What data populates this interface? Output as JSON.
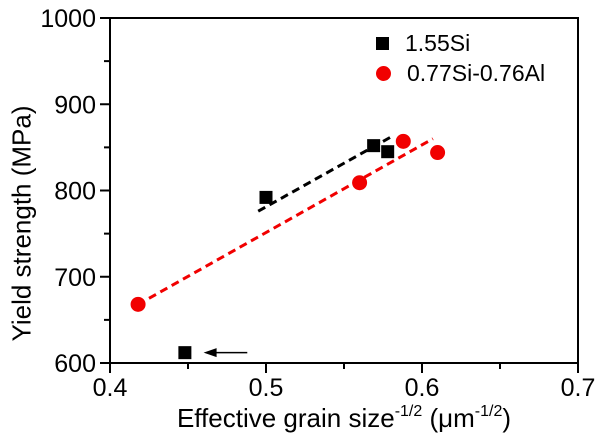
{
  "chart_data": {
    "type": "scatter",
    "title": "",
    "ylabel": "Yield strength (MPa)",
    "xlabel": {
      "text": "Effective grain size",
      "sup": "-1/2",
      "unit_open": " (",
      "unit": "μm",
      "unit_sup": "-1/2",
      "unit_close": ")"
    },
    "xlim": [
      0.4,
      0.7
    ],
    "ylim": [
      600,
      1000
    ],
    "x_major_ticks": [
      0.4,
      0.5,
      0.6,
      0.7
    ],
    "x_tick_labels": [
      "0.4",
      "0.5",
      "0.6",
      "0.7"
    ],
    "x_minor_ticks": [
      0.45,
      0.55,
      0.65
    ],
    "y_major_ticks": [
      600,
      700,
      800,
      900,
      1000
    ],
    "y_tick_labels": [
      "600",
      "700",
      "800",
      "900",
      "1000"
    ],
    "y_minor_ticks": [
      650,
      750,
      850,
      950
    ],
    "grid": false,
    "legend_position": "top-right",
    "series": [
      {
        "name": "1.55Si",
        "marker": "square",
        "color": "#000000",
        "points": [
          [
            0.448,
            612
          ],
          [
            0.5,
            792
          ],
          [
            0.569,
            852
          ],
          [
            0.578,
            845
          ]
        ],
        "trendline": {
          "x1": 0.495,
          "y1": 776,
          "x2": 0.582,
          "y2": 864,
          "style": "dashed"
        }
      },
      {
        "name": "0.77Si-0.76Al",
        "marker": "circle",
        "color": "#f10000",
        "points": [
          [
            0.418,
            668
          ],
          [
            0.56,
            809
          ],
          [
            0.588,
            857
          ],
          [
            0.61,
            844
          ]
        ],
        "trendline": {
          "x1": 0.425,
          "y1": 675,
          "x2": 0.607,
          "y2": 860,
          "style": "dashed"
        }
      }
    ],
    "annotations": [
      {
        "type": "arrow",
        "direction": "left",
        "y": 612,
        "x_tail": 0.488,
        "x_tip": 0.46,
        "target_point": [
          0.448,
          612
        ],
        "color": "#000000"
      }
    ]
  }
}
